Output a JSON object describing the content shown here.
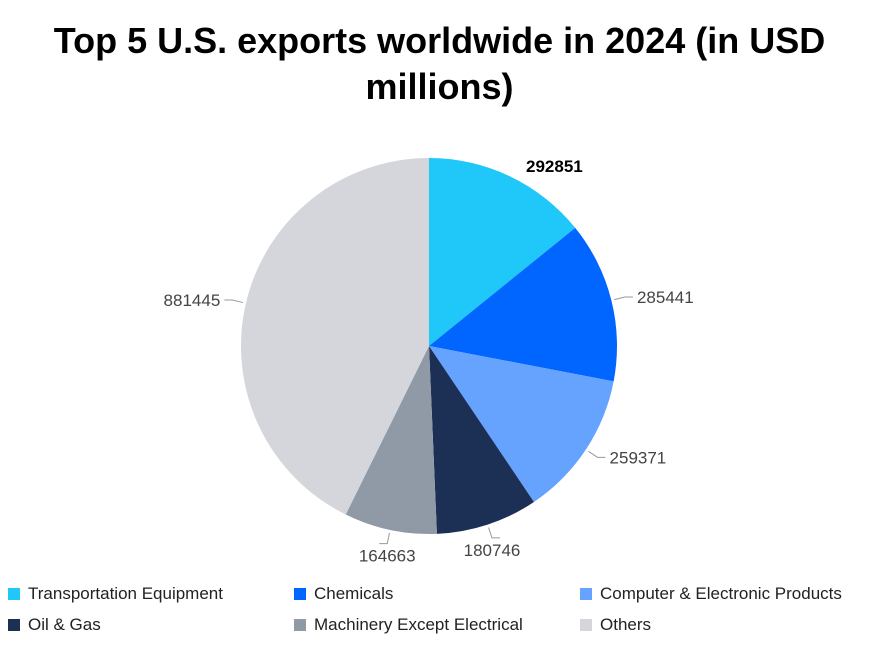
{
  "chart_data": {
    "type": "pie",
    "title": "Top 5 U.S. exports worldwide in 2024 (in USD millions)",
    "start_angle_deg": 0,
    "direction": "clockwise",
    "categories": [
      "Transportation Equipment",
      "Chemicals",
      "Computer & Electronic Products",
      "Oil & Gas",
      "Machinery Except Electrical",
      "Others"
    ],
    "values": [
      292851,
      285441,
      259371,
      180746,
      164663,
      881445
    ],
    "labels": [
      "292851",
      "285441",
      "259371",
      "180746",
      "164663",
      "881445"
    ],
    "colors": [
      "#1FC8F8",
      "#0066FF",
      "#66A3FF",
      "#1C2F55",
      "#9099A6",
      "#D5D6DB"
    ],
    "highlighted_label_index": 0,
    "legend_position": "bottom"
  }
}
